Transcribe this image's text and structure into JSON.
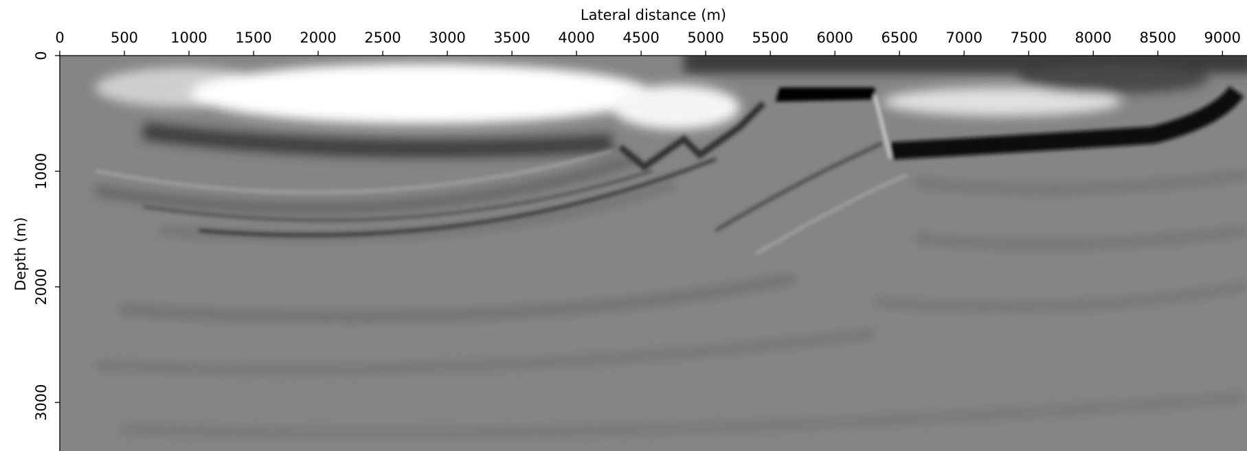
{
  "chart_data": {
    "type": "image",
    "xlabel": "Lateral distance (m)",
    "ylabel": "Depth (m)",
    "xlim": [
      0,
      9190
    ],
    "ylim": [
      3420,
      0
    ],
    "xticks": [
      0,
      500,
      1000,
      1500,
      2000,
      2500,
      3000,
      3500,
      4000,
      4500,
      5000,
      5500,
      6000,
      6500,
      7000,
      7500,
      8000,
      8500,
      9000
    ],
    "yticks": [
      0,
      1000,
      2000,
      3000
    ],
    "colormap": "gray"
  }
}
